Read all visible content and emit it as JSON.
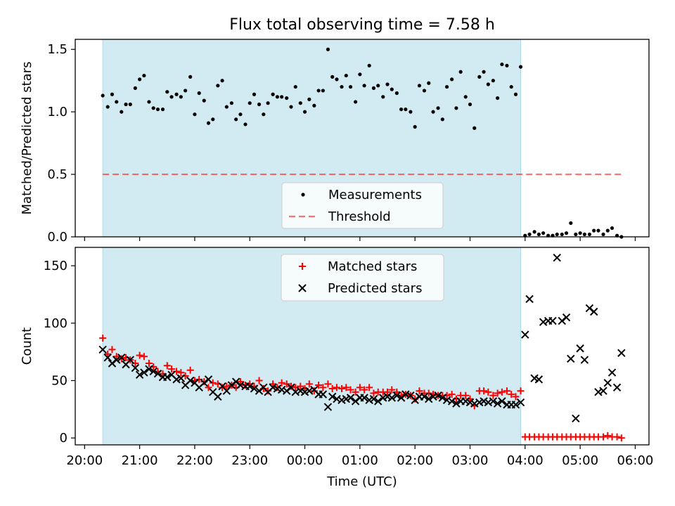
{
  "title": "Flux total observing time = 7.58 h",
  "colors": {
    "shade": "#add8e6",
    "measurement": "#000000",
    "threshold": "#ff0000",
    "matched": "#ff0000",
    "predicted": "#000000"
  },
  "chart_data": [
    {
      "type": "scatter",
      "panel": "top",
      "title": "Flux total observing time = 7.58 h",
      "xlabel": "",
      "ylabel": "Matched/Predicted stars",
      "xlim_hours": [
        19.83,
        30.25
      ],
      "ylim": [
        0,
        1.58
      ],
      "yticks": [
        0.0,
        0.5,
        1.0,
        1.5
      ],
      "ytick_labels": [
        "0.0",
        "0.5",
        "1.0",
        "1.5"
      ],
      "shaded_span_hours": [
        20.33,
        27.92
      ],
      "legend": {
        "placement": "lower-center"
      },
      "series": [
        {
          "name": "Measurements",
          "kind": "scatter",
          "x_hours": [
            20.33,
            20.42,
            20.5,
            20.58,
            20.67,
            20.75,
            20.83,
            20.92,
            21.0,
            21.08,
            21.17,
            21.25,
            21.33,
            21.42,
            21.5,
            21.58,
            21.67,
            21.75,
            21.83,
            21.92,
            22.0,
            22.08,
            22.17,
            22.25,
            22.33,
            22.42,
            22.5,
            22.58,
            22.67,
            22.75,
            22.83,
            22.92,
            23.0,
            23.08,
            23.17,
            23.25,
            23.33,
            23.42,
            23.5,
            23.58,
            23.67,
            23.75,
            23.83,
            23.92,
            24.0,
            24.08,
            24.17,
            24.25,
            24.33,
            24.42,
            24.5,
            24.58,
            24.67,
            24.75,
            24.83,
            24.92,
            25.0,
            25.08,
            25.17,
            25.25,
            25.33,
            25.42,
            25.5,
            25.58,
            25.67,
            25.75,
            25.83,
            25.92,
            26.0,
            26.08,
            26.17,
            26.25,
            26.33,
            26.42,
            26.5,
            26.58,
            26.67,
            26.75,
            26.83,
            26.92,
            27.0,
            27.08,
            27.17,
            27.25,
            27.33,
            27.42,
            27.5,
            27.58,
            27.67,
            27.75,
            27.83,
            27.92,
            28.0,
            28.08,
            28.17,
            28.25,
            28.33,
            28.42,
            28.5,
            28.58,
            28.67,
            28.75,
            28.83,
            28.92,
            29.0,
            29.08,
            29.17,
            29.25,
            29.33,
            29.42,
            29.5,
            29.58,
            29.67,
            29.75
          ],
          "y": [
            1.13,
            1.04,
            1.14,
            1.08,
            1.0,
            1.06,
            1.06,
            1.19,
            1.26,
            1.29,
            1.08,
            1.03,
            1.02,
            1.02,
            1.16,
            1.12,
            1.14,
            1.12,
            1.17,
            1.28,
            0.98,
            1.15,
            1.09,
            0.91,
            0.94,
            1.21,
            1.25,
            1.04,
            1.07,
            0.94,
            0.98,
            0.9,
            1.07,
            1.14,
            1.06,
            0.98,
            1.07,
            1.14,
            1.12,
            1.12,
            1.11,
            1.04,
            1.2,
            1.07,
            1.0,
            1.1,
            1.05,
            1.17,
            1.17,
            1.5,
            1.28,
            1.26,
            1.2,
            1.29,
            1.2,
            1.08,
            1.3,
            1.21,
            1.37,
            1.19,
            1.21,
            1.12,
            1.22,
            1.18,
            1.15,
            1.02,
            1.02,
            1.0,
            0.88,
            1.21,
            1.17,
            1.23,
            1.0,
            1.03,
            0.94,
            1.2,
            1.26,
            1.03,
            1.32,
            1.12,
            1.06,
            0.87,
            1.28,
            1.32,
            1.22,
            1.25,
            1.11,
            1.38,
            1.37,
            1.2,
            1.14,
            1.36,
            0.01,
            0.02,
            0.04,
            0.02,
            0.03,
            0.01,
            0.01,
            0.02,
            0.02,
            0.03,
            0.11,
            0.02,
            0.03,
            0.02,
            0.02,
            0.05,
            0.05,
            0.02,
            0.05,
            0.07,
            0.01,
            0.0
          ]
        },
        {
          "name": "Threshold",
          "kind": "line",
          "style": "dashed",
          "x_hours": [
            20.33,
            29.75
          ],
          "y": [
            0.5,
            0.5
          ]
        }
      ]
    },
    {
      "type": "scatter",
      "panel": "bottom",
      "xlabel": "Time (UTC)",
      "ylabel": "Count",
      "xlim_hours": [
        19.83,
        30.25
      ],
      "ylim": [
        -6,
        166
      ],
      "yticks": [
        0,
        50,
        100,
        150
      ],
      "ytick_labels": [
        "0",
        "50",
        "100",
        "150"
      ],
      "xticks_hours": [
        20,
        21,
        22,
        23,
        24,
        25,
        26,
        27,
        28,
        29,
        30
      ],
      "xtick_labels": [
        "20:00",
        "21:00",
        "22:00",
        "23:00",
        "00:00",
        "01:00",
        "02:00",
        "03:00",
        "04:00",
        "05:00",
        "06:00"
      ],
      "shaded_span_hours": [
        20.33,
        27.92
      ],
      "legend": {
        "placement": "upper-center"
      },
      "series": [
        {
          "name": "Matched stars",
          "marker": "plus",
          "x_hours": [
            20.33,
            20.42,
            20.5,
            20.58,
            20.67,
            20.75,
            20.83,
            20.92,
            21.0,
            21.08,
            21.17,
            21.25,
            21.33,
            21.42,
            21.5,
            21.58,
            21.67,
            21.75,
            21.83,
            21.92,
            22.0,
            22.08,
            22.17,
            22.25,
            22.33,
            22.42,
            22.5,
            22.58,
            22.67,
            22.75,
            22.83,
            22.92,
            23.0,
            23.08,
            23.17,
            23.25,
            23.33,
            23.42,
            23.5,
            23.58,
            23.67,
            23.75,
            23.83,
            23.92,
            24.0,
            24.08,
            24.17,
            24.25,
            24.33,
            24.42,
            24.5,
            24.58,
            24.67,
            24.75,
            24.83,
            24.92,
            25.0,
            25.08,
            25.17,
            25.25,
            25.33,
            25.42,
            25.5,
            25.58,
            25.67,
            25.75,
            25.83,
            25.92,
            26.0,
            26.08,
            26.17,
            26.25,
            26.33,
            26.42,
            26.5,
            26.58,
            26.67,
            26.75,
            26.83,
            26.92,
            27.0,
            27.08,
            27.17,
            27.25,
            27.33,
            27.42,
            27.5,
            27.58,
            27.67,
            27.75,
            27.83,
            27.92,
            28.0,
            28.08,
            28.17,
            28.25,
            28.33,
            28.42,
            28.5,
            28.58,
            28.67,
            28.75,
            28.83,
            28.92,
            29.0,
            29.08,
            29.17,
            29.25,
            29.33,
            29.42,
            29.5,
            29.58,
            29.67,
            29.75
          ],
          "y": [
            87,
            73,
            77,
            71,
            69,
            70,
            68,
            65,
            72,
            71,
            65,
            62,
            58,
            56,
            63,
            60,
            58,
            57,
            54,
            59,
            50,
            51,
            49,
            44,
            48,
            47,
            44,
            45,
            46,
            44,
            49,
            46,
            47,
            45,
            50,
            43,
            41,
            47,
            44,
            48,
            47,
            45,
            44,
            45,
            43,
            47,
            41,
            46,
            44,
            47,
            43,
            44,
            43,
            44,
            42,
            40,
            44,
            42,
            44,
            39,
            40,
            40,
            40,
            42,
            40,
            37,
            38,
            37,
            34,
            41,
            39,
            39,
            38,
            37,
            37,
            37,
            38,
            34,
            37,
            37,
            34,
            28,
            41,
            41,
            40,
            37,
            39,
            40,
            41,
            38,
            36,
            41,
            1,
            1,
            1,
            1,
            1,
            1,
            1,
            1,
            1,
            1,
            1,
            1,
            1,
            1,
            1,
            1,
            1,
            1,
            2,
            1,
            1,
            0
          ]
        },
        {
          "name": "Predicted stars",
          "marker": "x",
          "x_hours": [
            20.33,
            20.42,
            20.5,
            20.58,
            20.67,
            20.75,
            20.83,
            20.92,
            21.0,
            21.08,
            21.17,
            21.25,
            21.33,
            21.42,
            21.5,
            21.58,
            21.67,
            21.75,
            21.83,
            21.92,
            22.0,
            22.08,
            22.17,
            22.25,
            22.33,
            22.42,
            22.5,
            22.58,
            22.67,
            22.75,
            22.83,
            22.92,
            23.0,
            23.08,
            23.17,
            23.25,
            23.33,
            23.42,
            23.5,
            23.58,
            23.67,
            23.75,
            23.83,
            23.92,
            24.0,
            24.08,
            24.17,
            24.25,
            24.33,
            24.42,
            24.5,
            24.58,
            24.67,
            24.75,
            24.83,
            24.92,
            25.0,
            25.08,
            25.17,
            25.25,
            25.33,
            25.42,
            25.5,
            25.58,
            25.67,
            25.75,
            25.83,
            25.92,
            26.0,
            26.08,
            26.17,
            26.25,
            26.33,
            26.42,
            26.5,
            26.58,
            26.67,
            26.75,
            26.83,
            26.92,
            27.0,
            27.08,
            27.17,
            27.25,
            27.33,
            27.42,
            27.5,
            27.58,
            27.67,
            27.75,
            27.83,
            27.92,
            28.0,
            28.08,
            28.17,
            28.25,
            28.33,
            28.42,
            28.5,
            28.58,
            28.67,
            28.75,
            28.83,
            28.92,
            29.0,
            29.08,
            29.17,
            29.25,
            29.33,
            29.42,
            29.5,
            29.58,
            29.67,
            29.75
          ],
          "y": [
            77,
            70,
            65,
            68,
            70,
            64,
            68,
            61,
            55,
            57,
            60,
            58,
            56,
            53,
            53,
            55,
            51,
            52,
            46,
            50,
            48,
            44,
            48,
            51,
            40,
            36,
            45,
            41,
            46,
            49,
            46,
            45,
            45,
            43,
            41,
            44,
            40,
            44,
            43,
            42,
            41,
            44,
            40,
            41,
            40,
            41,
            42,
            38,
            38,
            27,
            36,
            34,
            33,
            34,
            35,
            32,
            35,
            35,
            33,
            34,
            32,
            35,
            36,
            35,
            37,
            35,
            38,
            37,
            33,
            36,
            36,
            34,
            36,
            37,
            35,
            33,
            32,
            30,
            32,
            32,
            31,
            30,
            31,
            32,
            31,
            32,
            30,
            32,
            29,
            29,
            29,
            31,
            90,
            121,
            52,
            51,
            101,
            102,
            102,
            157,
            102,
            105,
            69,
            17,
            78,
            68,
            113,
            110,
            40,
            41,
            48,
            57,
            44,
            74
          ]
        }
      ]
    }
  ]
}
